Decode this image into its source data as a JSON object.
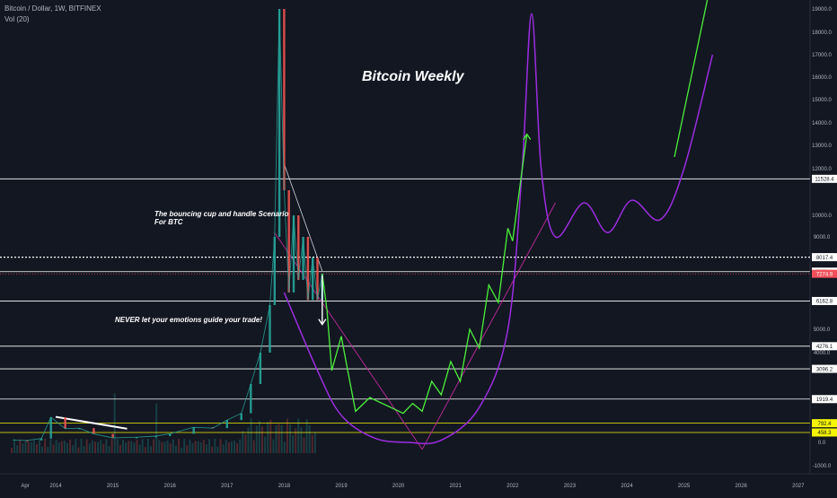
{
  "header": {
    "symbol": "Bitcoin / Dollar, 1W, BITFINEX",
    "volume_indicator": "Vol (20)"
  },
  "annotations": {
    "title": "Bitcoin Weekly",
    "scenario_line1": "The bouncing cup and handle Scenario",
    "scenario_line2": "For BTC",
    "advice": "NEVER let your emotions guide your trade!"
  },
  "colors": {
    "background": "#131722",
    "up_candle": "#26a69a",
    "down_candle": "#ef5350",
    "projection_arrows": "#4cf03c",
    "cup_curve": "#9b2de0",
    "trendline_magenta": "#c02a9c",
    "level_line": "#ffffff",
    "yellow_level": "#f5f500",
    "current_price": "#f0505a"
  },
  "chart_data": {
    "type": "line",
    "title": "Bitcoin Weekly",
    "x_axis": {
      "tick_labels": [
        "Apr",
        "2014",
        "2015",
        "2016",
        "2017",
        "2018",
        "2019",
        "2020",
        "2021",
        "2022",
        "2023",
        "2024",
        "2025",
        "2026",
        "2027"
      ]
    },
    "y_axis": {
      "tick_labels": [
        "19000.0",
        "18000.0",
        "17000.0",
        "16000.0",
        "15000.0",
        "14000.0",
        "13000.0",
        "12000.0",
        "10000.0",
        "9000.0",
        "5000.0",
        "4000.0",
        "0.0",
        "-1000.0"
      ],
      "grid": false
    },
    "price_series": {
      "name": "BTCUSD weekly",
      "points": [
        {
          "x": "2013-04",
          "y": 100
        },
        {
          "x": "2013-07",
          "y": 90
        },
        {
          "x": "2013-10",
          "y": 180
        },
        {
          "x": "2013-12",
          "y": 1000
        },
        {
          "x": "2014-03",
          "y": 600
        },
        {
          "x": "2014-06",
          "y": 620
        },
        {
          "x": "2014-09",
          "y": 390
        },
        {
          "x": "2015-01",
          "y": 210
        },
        {
          "x": "2015-06",
          "y": 240
        },
        {
          "x": "2015-10",
          "y": 290
        },
        {
          "x": "2016-01",
          "y": 400
        },
        {
          "x": "2016-06",
          "y": 650
        },
        {
          "x": "2016-10",
          "y": 620
        },
        {
          "x": "2017-01",
          "y": 900
        },
        {
          "x": "2017-04",
          "y": 1200
        },
        {
          "x": "2017-06",
          "y": 2500
        },
        {
          "x": "2017-08",
          "y": 4000
        },
        {
          "x": "2017-10",
          "y": 6000
        },
        {
          "x": "2017-11",
          "y": 9000
        },
        {
          "x": "2017-12",
          "y": 19000
        },
        {
          "x": "2018-01",
          "y": 11000
        },
        {
          "x": "2018-02",
          "y": 6500
        },
        {
          "x": "2018-03",
          "y": 10000
        },
        {
          "x": "2018-04",
          "y": 7000
        },
        {
          "x": "2018-05",
          "y": 9000
        },
        {
          "x": "2018-06",
          "y": 6200
        },
        {
          "x": "2018-07",
          "y": 8000
        },
        {
          "x": "2018-08",
          "y": 6200
        },
        {
          "x": "2018-09",
          "y": 7274.9
        }
      ]
    },
    "horizontal_levels": [
      {
        "label": "11528.4",
        "value": 11528.4,
        "style": "solid"
      },
      {
        "label": "8017.4",
        "value": 8017.4,
        "style": "dotted"
      },
      {
        "label": "7370.4",
        "value": 7370.4,
        "style": "solid"
      },
      {
        "label": "7274.9",
        "value": 7274.9,
        "style": "current"
      },
      {
        "label": "6162.8",
        "value": 6162.8,
        "style": "solid"
      },
      {
        "label": "4276.1",
        "value": 4276.1,
        "style": "solid"
      },
      {
        "label": "3096.2",
        "value": 3096.2,
        "style": "solid"
      },
      {
        "label": "1919.4",
        "value": 1919.4,
        "style": "solid"
      },
      {
        "label": "792.4",
        "value": 792.4,
        "style": "yellow"
      },
      {
        "label": "458.3",
        "value": 458.3,
        "style": "yellow"
      }
    ],
    "projection_path": [
      {
        "x": "2018-09",
        "y": 7274.9
      },
      {
        "x": "2018-10",
        "y": 5800
      },
      {
        "x": "2018-11",
        "y": 3000
      },
      {
        "x": "2019-01",
        "y": 4700
      },
      {
        "x": "2019-02",
        "y": 3500
      },
      {
        "x": "2019-04",
        "y": 1300
      },
      {
        "x": "2019-07",
        "y": 2000
      },
      {
        "x": "2020-02",
        "y": 1200
      },
      {
        "x": "2020-04",
        "y": 1700
      },
      {
        "x": "2020-06",
        "y": 1300
      },
      {
        "x": "2020-08",
        "y": 2600
      },
      {
        "x": "2020-10",
        "y": 2100
      },
      {
        "x": "2020-12",
        "y": 3500
      },
      {
        "x": "2021-02",
        "y": 2600
      },
      {
        "x": "2021-04",
        "y": 5000
      },
      {
        "x": "2021-06",
        "y": 4200
      },
      {
        "x": "2021-08",
        "y": 6800
      },
      {
        "x": "2021-10",
        "y": 6100
      },
      {
        "x": "2021-12",
        "y": 9400
      },
      {
        "x": "2022-01",
        "y": 8800
      },
      {
        "x": "2022-04",
        "y": 13500
      }
    ],
    "cup_curve": [
      {
        "x": "2018-01",
        "y": 6500
      },
      {
        "x": "2018-08",
        "y": 3000
      },
      {
        "x": "2019-01",
        "y": 1100
      },
      {
        "x": "2019-08",
        "y": 200
      },
      {
        "x": "2020-03",
        "y": 0
      },
      {
        "x": "2020-10",
        "y": 100
      },
      {
        "x": "2021-06",
        "y": 1500
      },
      {
        "x": "2021-12",
        "y": 5000
      },
      {
        "x": "2022-03",
        "y": 12000
      },
      {
        "x": "2022-05",
        "y": 18800
      },
      {
        "x": "2022-07",
        "y": 12000
      },
      {
        "x": "2022-10",
        "y": 9000
      },
      {
        "x": "2023-04",
        "y": 10500
      },
      {
        "x": "2023-09",
        "y": 9200
      },
      {
        "x": "2024-02",
        "y": 10600
      },
      {
        "x": "2024-08",
        "y": 9800
      },
      {
        "x": "2025-01",
        "y": 12000
      },
      {
        "x": "2025-07",
        "y": 17000
      }
    ],
    "green_target_line": [
      {
        "x": "2024-11",
        "y": 12500
      },
      {
        "x": "2025-06",
        "y": 19500
      }
    ],
    "legend": "none"
  }
}
